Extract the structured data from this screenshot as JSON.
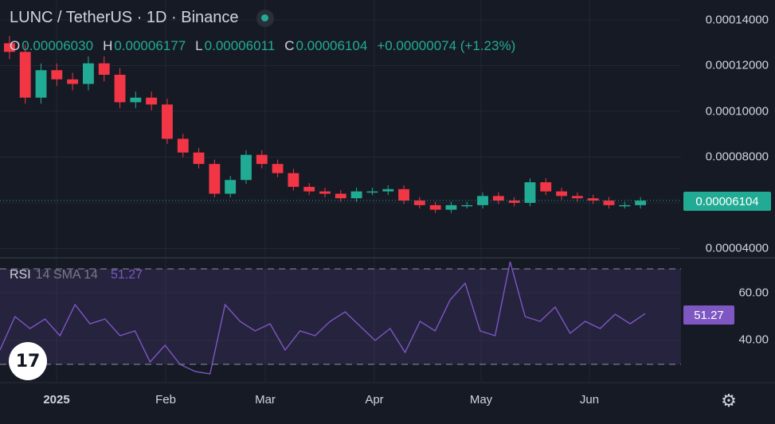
{
  "header": {
    "symbol": "LUNC / TetherUS · 1D · Binance",
    "ohlc": {
      "o_label": "O",
      "o_value": "0.00006030",
      "h_label": "H",
      "h_value": "0.00006177",
      "l_label": "L",
      "l_value": "0.00006011",
      "c_label": "C",
      "c_value": "0.00006104",
      "change": "+0.00000074 (+1.23%)"
    }
  },
  "rsi_legend": {
    "name": "RSI",
    "params": "14 SMA 14",
    "value": "51.27"
  },
  "price_axis": {
    "ticks": [
      "0.00014000",
      "0.00012000",
      "0.00010000",
      "0.00008000",
      "0.00004000"
    ]
  },
  "current_price_label": "0.00006104",
  "rsi_axis": {
    "ticks": [
      "60.00",
      "40.00"
    ]
  },
  "rsi_current_label": "51.27",
  "time_axis": {
    "labels": [
      "2025",
      "Feb",
      "Mar",
      "Apr",
      "May",
      "Jun"
    ]
  },
  "logo_text": "17",
  "colors": {
    "up": "#22ab94",
    "down": "#f23645",
    "rsi": "#7e57c2",
    "background": "#161a25"
  },
  "icons": {
    "settings": "gear-icon",
    "logo": "tradingview-logo"
  },
  "chart_data": [
    {
      "type": "candlestick",
      "title": "LUNC / TetherUS · 1D · Binance",
      "x_labels": [
        "2025",
        "Feb",
        "Mar",
        "Apr",
        "May",
        "Jun"
      ],
      "ylim": [
        3.7e-05,
        0.000145
      ],
      "close_series": [
        0.000126,
        0.000106,
        0.000118,
        0.000114,
        0.000112,
        0.000121,
        0.000116,
        0.000104,
        0.000106,
        0.000103,
        8.8e-05,
        8.2e-05,
        7.7e-05,
        6.4e-05,
        7e-05,
        8.1e-05,
        7.7e-05,
        7.3e-05,
        6.7e-05,
        6.5e-05,
        6.4e-05,
        6.2e-05,
        6.5e-05,
        6.5e-05,
        6.6e-05,
        6.1e-05,
        5.9e-05,
        5.7e-05,
        5.9e-05,
        5.9e-05,
        6.3e-05,
        6.1e-05,
        6e-05,
        6.9e-05,
        6.5e-05,
        6.3e-05,
        6.2e-05,
        6.1e-05,
        5.9e-05,
        5.9e-05,
        6.1e-05
      ],
      "last_close": 6.104e-05,
      "grid": true
    },
    {
      "type": "line",
      "title": "RSI 14 SMA 14",
      "ylim": [
        23,
        83
      ],
      "bands": [
        30,
        70
      ],
      "values": [
        36,
        50,
        45,
        49,
        42,
        55,
        47,
        49,
        42,
        44,
        31,
        38,
        30,
        27,
        26,
        55,
        48,
        44,
        47,
        36,
        44,
        42,
        48,
        52,
        46,
        40,
        45,
        35,
        48,
        44,
        57,
        64,
        44,
        42,
        73,
        50,
        48,
        54,
        43,
        48,
        45,
        51,
        47,
        51.27
      ],
      "last": 51.27,
      "grid": true
    }
  ]
}
